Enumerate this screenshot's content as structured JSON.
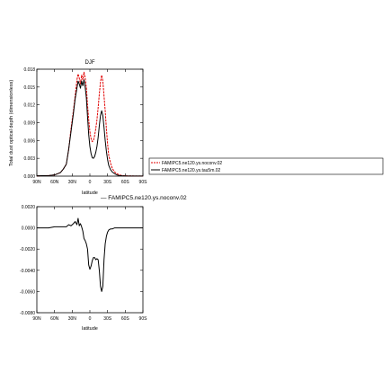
{
  "chart_data": [
    {
      "type": "line",
      "title": "DJF",
      "xlabel": "latitude",
      "ylabel": "Total dust optical depth (dimensionless)",
      "xlim": [
        90,
        -90
      ],
      "ylim": [
        0,
        0.018
      ],
      "xticks": [
        90,
        60,
        30,
        0,
        -30,
        -60,
        -90
      ],
      "xtick_labels": [
        "90N",
        "60N",
        "30N",
        "0",
        "30S",
        "60S",
        "90S"
      ],
      "yticks": [
        0,
        0.003,
        0.006,
        0.009,
        0.012,
        0.015,
        0.018
      ],
      "ytick_labels": [
        "0.000",
        "0.003",
        "0.006",
        "0.009",
        "0.012",
        "0.015",
        "0.018"
      ],
      "legend_position": "right",
      "series": [
        {
          "name": "FAMIPC5.ne120.ys.noconv.02",
          "color": "#e00000",
          "style": "dashed",
          "x": [
            90,
            80,
            70,
            60,
            50,
            45,
            40,
            36,
            32,
            28,
            25,
            22,
            20,
            18,
            16,
            14,
            12,
            10,
            8,
            6,
            4,
            2,
            0,
            -2,
            -4,
            -6,
            -8,
            -10,
            -12,
            -14,
            -16,
            -18,
            -20,
            -22,
            -24,
            -26,
            -28,
            -30,
            -32,
            -35,
            -38,
            -42,
            -46,
            -50,
            -55,
            -60,
            -70,
            -80,
            -90
          ],
          "y": [
            5e-05,
            8e-05,
            0.0001,
            0.0002,
            0.0006,
            0.0012,
            0.002,
            0.0045,
            0.008,
            0.011,
            0.0135,
            0.0162,
            0.0172,
            0.0165,
            0.0155,
            0.017,
            0.0162,
            0.0175,
            0.0165,
            0.015,
            0.012,
            0.0095,
            0.0075,
            0.0063,
            0.0058,
            0.006,
            0.0068,
            0.008,
            0.0095,
            0.0115,
            0.0138,
            0.0158,
            0.017,
            0.016,
            0.0135,
            0.011,
            0.008,
            0.0055,
            0.0035,
            0.0022,
            0.0013,
            0.0007,
            0.0004,
            0.0002,
            0.0001,
            5e-05,
            3e-05,
            2e-05,
            1e-05
          ]
        },
        {
          "name": "FAMIPC5.ne120.ys.tau5m.02",
          "color": "#000000",
          "style": "solid",
          "x": [
            90,
            80,
            70,
            60,
            50,
            45,
            40,
            36,
            32,
            28,
            25,
            22,
            20,
            18,
            16,
            14,
            12,
            10,
            8,
            6,
            4,
            2,
            0,
            -2,
            -4,
            -6,
            -8,
            -10,
            -12,
            -14,
            -16,
            -18,
            -20,
            -22,
            -24,
            -26,
            -28,
            -30,
            -32,
            -35,
            -38,
            -42,
            -46,
            -50,
            -55,
            -60,
            -70,
            -80,
            -90
          ],
          "y": [
            5e-05,
            8e-05,
            0.0001,
            0.0002,
            0.0006,
            0.0012,
            0.002,
            0.0045,
            0.0075,
            0.0105,
            0.013,
            0.0148,
            0.016,
            0.0155,
            0.0148,
            0.016,
            0.0152,
            0.0162,
            0.015,
            0.0132,
            0.01,
            0.007,
            0.005,
            0.0038,
            0.0031,
            0.003,
            0.0033,
            0.004,
            0.005,
            0.0065,
            0.0085,
            0.0102,
            0.011,
            0.0102,
            0.0082,
            0.006,
            0.0042,
            0.0028,
            0.0018,
            0.0011,
            0.0007,
            0.0004,
            0.0002,
            0.0001,
            5e-05,
            3e-05,
            2e-05,
            1e-05,
            1e-05
          ]
        }
      ]
    },
    {
      "type": "line",
      "title": "— FAMIPC5.ne120.ys.noconv.02",
      "xlabel": "latitude",
      "ylabel": "",
      "xlim": [
        90,
        -90
      ],
      "ylim": [
        -0.008,
        0.002
      ],
      "xticks": [
        90,
        60,
        30,
        0,
        -30,
        -60,
        -90
      ],
      "xtick_labels": [
        "90N",
        "60N",
        "30N",
        "0",
        "30S",
        "60S",
        "90S"
      ],
      "yticks": [
        0.002,
        0,
        -0.002,
        -0.004,
        -0.006,
        -0.008
      ],
      "ytick_labels": [
        "0.0020",
        "0.0000",
        "-0.0020",
        "-0.0040",
        "-0.0060",
        "-0.0080"
      ],
      "series": [
        {
          "color": "#000000",
          "style": "solid",
          "x": [
            90,
            80,
            70,
            60,
            50,
            45,
            40,
            36,
            32,
            28,
            25,
            22,
            20,
            18,
            16,
            14,
            12,
            10,
            8,
            6,
            4,
            2,
            0,
            -2,
            -4,
            -6,
            -8,
            -10,
            -12,
            -14,
            -16,
            -18,
            -20,
            -22,
            -24,
            -26,
            -28,
            -30,
            -32,
            -35,
            -38,
            -42,
            -46,
            -50,
            -55,
            -60,
            -70,
            -80,
            -90
          ],
          "y": [
            0,
            0,
            0,
            0.0001,
            0.0001,
            0.0001,
            0.0001,
            0.0003,
            0.0002,
            0.0004,
            0.0006,
            0.0003,
            0.0009,
            0.0002,
            0.0004,
            0.0001,
            -0.0003,
            -0.001,
            -0.0012,
            -0.0015,
            -0.002,
            -0.0035,
            -0.0039,
            -0.0036,
            -0.0031,
            -0.0028,
            -0.0028,
            -0.003,
            -0.0029,
            -0.003,
            -0.004,
            -0.0055,
            -0.006,
            -0.0055,
            -0.003,
            -0.0015,
            -0.0008,
            -0.0004,
            -0.0002,
            -0.0001,
            -0.0001,
            0,
            0,
            0,
            0,
            0,
            0,
            0,
            0
          ]
        }
      ]
    }
  ]
}
